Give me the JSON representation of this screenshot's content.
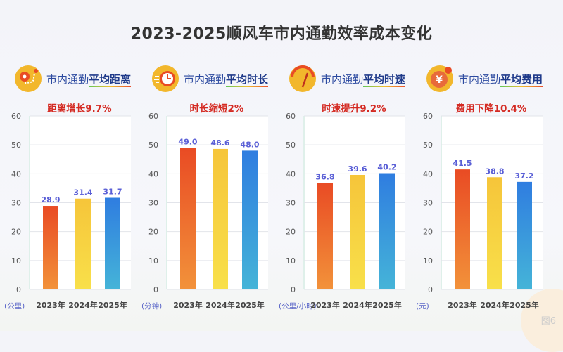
{
  "title": "2023-2025顺风车市内通勤效率成本变化",
  "watermark": "图6",
  "colors": {
    "bar_2023": "#e94b24",
    "bar_2024": "#f6c53a",
    "bar_2025": "#2f7de0",
    "label": "#5a5fd6",
    "subtitle": "#d42a22"
  },
  "chart_data": [
    {
      "type": "bar",
      "title_prefix": "市内通勤",
      "title_emph": "平均距离",
      "subtitle": "距离增长9.7%",
      "icon": "route-map-icon",
      "unit": "(公里)",
      "categories": [
        "2023年",
        "2024年",
        "2025年"
      ],
      "values": [
        28.9,
        31.4,
        31.7
      ],
      "labels": [
        "28.9",
        "31.4",
        "31.7"
      ],
      "ylim": [
        0,
        60
      ],
      "yticks": [
        0,
        10,
        20,
        30,
        40,
        50,
        60
      ],
      "grid": true
    },
    {
      "type": "bar",
      "title_prefix": "市内通勤",
      "title_emph": "平均时长",
      "subtitle": "时长缩短2%",
      "icon": "clock-icon",
      "unit": "(分钟)",
      "categories": [
        "2023年",
        "2024年",
        "2025年"
      ],
      "values": [
        49.0,
        48.6,
        48.0
      ],
      "labels": [
        "49.0",
        "48.6",
        "48.0"
      ],
      "ylim": [
        0,
        60
      ],
      "yticks": [
        0,
        10,
        20,
        30,
        40,
        50,
        60
      ],
      "grid": true
    },
    {
      "type": "bar",
      "title_prefix": "市内通勤",
      "title_emph": "平均时速",
      "subtitle": "时速提升9.2%",
      "icon": "speedometer-icon",
      "unit": "(公里/小时)",
      "categories": [
        "2023年",
        "2024年",
        "2025年"
      ],
      "values": [
        36.8,
        39.6,
        40.2
      ],
      "labels": [
        "36.8",
        "39.6",
        "40.2"
      ],
      "ylim": [
        0,
        60
      ],
      "yticks": [
        0,
        10,
        20,
        30,
        40,
        50,
        60
      ],
      "grid": true
    },
    {
      "type": "bar",
      "title_prefix": "市内通勤",
      "title_emph": "平均费用",
      "subtitle": "费用下降10.4%",
      "icon": "yuan-coin-icon",
      "unit": "(元)",
      "categories": [
        "2023年",
        "2024年",
        "2025年"
      ],
      "values": [
        41.5,
        38.8,
        37.2
      ],
      "labels": [
        "41.5",
        "38.8",
        "37.2"
      ],
      "ylim": [
        0,
        60
      ],
      "yticks": [
        0,
        10,
        20,
        30,
        40,
        50,
        60
      ],
      "grid": true
    }
  ]
}
